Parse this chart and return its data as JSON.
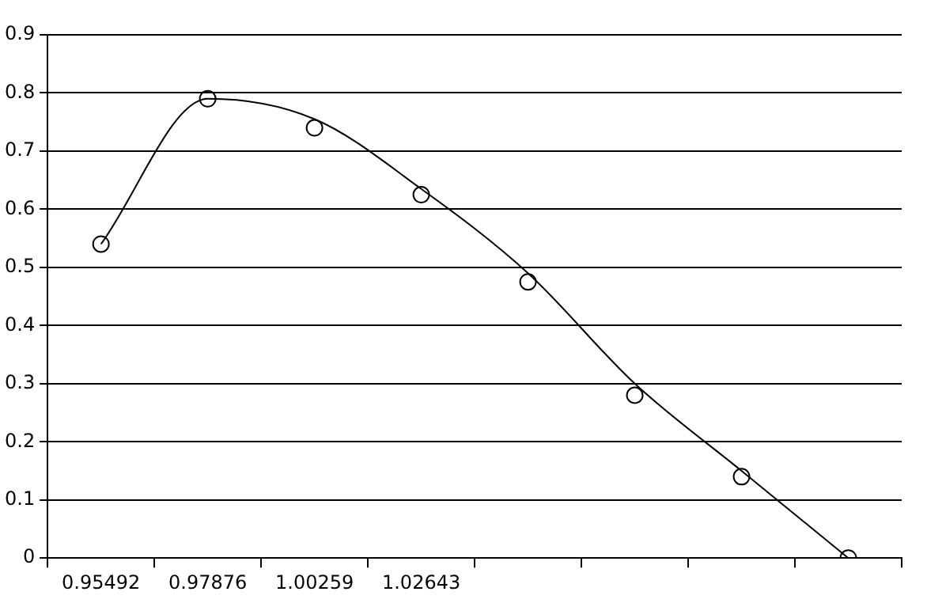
{
  "chart_data": {
    "type": "line",
    "categories": [
      "0.95492",
      "0.97876",
      "1.00259",
      "1.02643",
      null,
      null,
      null,
      null
    ],
    "series": [
      {
        "type": "scatter",
        "color": "#000000",
        "marker": "circle",
        "values": [
          0.54,
          0.79,
          0.74,
          0.625,
          0.475,
          0.28,
          0.14,
          0.0
        ]
      },
      {
        "color": "#000000",
        "marker": "none",
        "values": [
          0.54,
          0.79,
          0.755,
          0.635,
          0.49,
          0.3,
          0.15,
          0.0
        ]
      }
    ],
    "ylim": [
      0,
      0.9
    ],
    "yticks": [
      0,
      0.1,
      0.2,
      0.3,
      0.4,
      0.5,
      0.6,
      0.7,
      0.8,
      0.9
    ],
    "grid": "y",
    "legend": false
  }
}
